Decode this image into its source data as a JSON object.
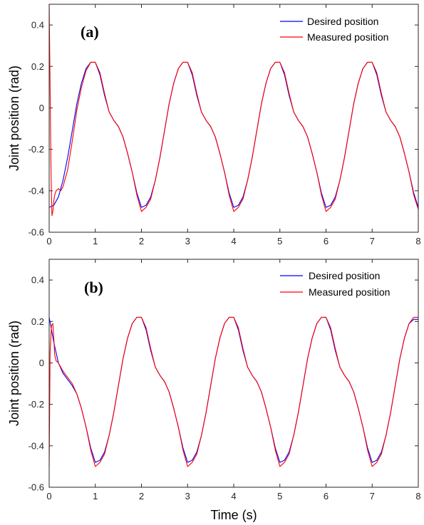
{
  "figure": {
    "xlabel": "Time (s)"
  },
  "chart_data": [
    {
      "type": "line",
      "panel_label": "(a)",
      "ylabel": "Joint position (rad)",
      "xlim": [
        0,
        8
      ],
      "ylim": [
        -0.6,
        0.5
      ],
      "x_ticks": [
        "0",
        "1",
        "2",
        "3",
        "4",
        "5",
        "6",
        "7",
        "8"
      ],
      "y_ticks": [
        "-0.6",
        "-0.4",
        "-0.2",
        "0",
        "0.2",
        "0.4"
      ],
      "legend_position": "top-right",
      "series": [
        {
          "name": "Desired position",
          "color": "#0000ff",
          "x": [
            0,
            0.1,
            0.2,
            0.3,
            0.4,
            0.5,
            0.6,
            0.7,
            0.8,
            0.9,
            1.0,
            1.1,
            1.2,
            1.3,
            1.4,
            1.5,
            1.6,
            1.7,
            1.8,
            1.9,
            2.0,
            2.1,
            2.2,
            2.3,
            2.4,
            2.5,
            2.6,
            2.7,
            2.8,
            2.9,
            3.0,
            3.1,
            3.2,
            3.3,
            3.4,
            3.5,
            3.6,
            3.7,
            3.8,
            3.9,
            4.0,
            4.1,
            4.2,
            4.3,
            4.4,
            4.5,
            4.6,
            4.7,
            4.8,
            4.9,
            5.0,
            5.1,
            5.2,
            5.3,
            5.4,
            5.5,
            5.6,
            5.7,
            5.8,
            5.9,
            6.0,
            6.1,
            6.2,
            6.3,
            6.4,
            6.5,
            6.6,
            6.7,
            6.8,
            6.9,
            7.0,
            7.1,
            7.2,
            7.3,
            7.4,
            7.5,
            7.6,
            7.7,
            7.8,
            7.9,
            8.0
          ],
          "y": [
            -0.48,
            -0.47,
            -0.43,
            -0.35,
            -0.24,
            -0.11,
            0.02,
            0.12,
            0.19,
            0.22,
            0.22,
            0.16,
            0.06,
            -0.02,
            -0.06,
            -0.09,
            -0.14,
            -0.22,
            -0.31,
            -0.41,
            -0.48,
            -0.47,
            -0.43,
            -0.35,
            -0.24,
            -0.11,
            0.02,
            0.12,
            0.19,
            0.22,
            0.22,
            0.16,
            0.06,
            -0.02,
            -0.06,
            -0.09,
            -0.14,
            -0.22,
            -0.31,
            -0.41,
            -0.48,
            -0.47,
            -0.43,
            -0.35,
            -0.24,
            -0.11,
            0.02,
            0.12,
            0.19,
            0.22,
            0.22,
            0.16,
            0.06,
            -0.02,
            -0.06,
            -0.09,
            -0.14,
            -0.22,
            -0.31,
            -0.41,
            -0.48,
            -0.47,
            -0.43,
            -0.35,
            -0.24,
            -0.11,
            0.02,
            0.12,
            0.19,
            0.22,
            0.22,
            0.16,
            0.06,
            -0.02,
            -0.06,
            -0.09,
            -0.14,
            -0.22,
            -0.31,
            -0.41,
            -0.48
          ]
        },
        {
          "name": "Measured position",
          "color": "#ff0000",
          "x": [
            0,
            0.02,
            0.04,
            0.06,
            0.08,
            0.1,
            0.12,
            0.15,
            0.2,
            0.25,
            0.3,
            0.4,
            0.5,
            0.6,
            0.7,
            0.8,
            0.9,
            1.0,
            1.1,
            1.2,
            1.3,
            1.4,
            1.5,
            1.6,
            1.7,
            1.8,
            1.9,
            2.0,
            2.1,
            2.2,
            2.3,
            2.4,
            2.5,
            2.6,
            2.7,
            2.8,
            2.9,
            3.0,
            3.1,
            3.2,
            3.3,
            3.4,
            3.5,
            3.6,
            3.7,
            3.8,
            3.9,
            4.0,
            4.1,
            4.2,
            4.3,
            4.4,
            4.5,
            4.6,
            4.7,
            4.8,
            4.9,
            5.0,
            5.1,
            5.2,
            5.3,
            5.4,
            5.5,
            5.6,
            5.7,
            5.8,
            5.9,
            6.0,
            6.1,
            6.2,
            6.3,
            6.4,
            6.5,
            6.6,
            6.7,
            6.8,
            6.9,
            7.0,
            7.1,
            7.2,
            7.3,
            7.4,
            7.5,
            7.6,
            7.7,
            7.8,
            7.9,
            8.0
          ],
          "y": [
            0.5,
            0.1,
            -0.3,
            -0.52,
            -0.5,
            -0.45,
            -0.42,
            -0.4,
            -0.39,
            -0.4,
            -0.38,
            -0.3,
            -0.16,
            -0.01,
            0.1,
            0.18,
            0.22,
            0.22,
            0.17,
            0.07,
            -0.02,
            -0.06,
            -0.09,
            -0.14,
            -0.22,
            -0.31,
            -0.42,
            -0.5,
            -0.48,
            -0.44,
            -0.35,
            -0.24,
            -0.11,
            0.02,
            0.12,
            0.19,
            0.22,
            0.22,
            0.17,
            0.07,
            -0.02,
            -0.06,
            -0.09,
            -0.14,
            -0.22,
            -0.31,
            -0.42,
            -0.5,
            -0.48,
            -0.44,
            -0.35,
            -0.24,
            -0.11,
            0.02,
            0.12,
            0.19,
            0.22,
            0.22,
            0.17,
            0.07,
            -0.02,
            -0.06,
            -0.09,
            -0.14,
            -0.22,
            -0.31,
            -0.42,
            -0.5,
            -0.48,
            -0.44,
            -0.35,
            -0.24,
            -0.11,
            0.02,
            0.12,
            0.19,
            0.22,
            0.22,
            0.17,
            0.07,
            -0.02,
            -0.06,
            -0.09,
            -0.14,
            -0.22,
            -0.31,
            -0.42,
            -0.49
          ]
        }
      ]
    },
    {
      "type": "line",
      "panel_label": "(b)",
      "ylabel": "Joint position (rad)",
      "xlim": [
        0,
        8
      ],
      "ylim": [
        -0.6,
        0.5
      ],
      "x_ticks": [
        "0",
        "1",
        "2",
        "3",
        "4",
        "5",
        "6",
        "7",
        "8"
      ],
      "y_ticks": [
        "-0.6",
        "-0.4",
        "-0.2",
        "0",
        "0.2",
        "0.4"
      ],
      "legend_position": "top-right",
      "series": [
        {
          "name": "Desired position",
          "color": "#0000ff",
          "x": [
            0,
            0.1,
            0.2,
            0.3,
            0.4,
            0.5,
            0.6,
            0.7,
            0.8,
            0.9,
            1.0,
            1.1,
            1.2,
            1.3,
            1.4,
            1.5,
            1.6,
            1.7,
            1.8,
            1.9,
            2.0,
            2.1,
            2.2,
            2.3,
            2.4,
            2.5,
            2.6,
            2.7,
            2.8,
            2.9,
            3.0,
            3.1,
            3.2,
            3.3,
            3.4,
            3.5,
            3.6,
            3.7,
            3.8,
            3.9,
            4.0,
            4.1,
            4.2,
            4.3,
            4.4,
            4.5,
            4.6,
            4.7,
            4.8,
            4.9,
            5.0,
            5.1,
            5.2,
            5.3,
            5.4,
            5.5,
            5.6,
            5.7,
            5.8,
            5.9,
            6.0,
            6.1,
            6.2,
            6.3,
            6.4,
            6.5,
            6.6,
            6.7,
            6.8,
            6.9,
            7.0,
            7.1,
            7.2,
            7.3,
            7.4,
            7.5,
            7.6,
            7.7,
            7.8,
            7.9,
            8.0
          ],
          "y": [
            0.22,
            0.1,
            0.0,
            -0.05,
            -0.08,
            -0.11,
            -0.15,
            -0.22,
            -0.31,
            -0.41,
            -0.48,
            -0.47,
            -0.43,
            -0.35,
            -0.24,
            -0.11,
            0.02,
            0.12,
            0.19,
            0.22,
            0.22,
            0.16,
            0.06,
            -0.02,
            -0.06,
            -0.09,
            -0.14,
            -0.22,
            -0.31,
            -0.41,
            -0.48,
            -0.47,
            -0.43,
            -0.35,
            -0.24,
            -0.11,
            0.02,
            0.12,
            0.19,
            0.22,
            0.22,
            0.16,
            0.06,
            -0.02,
            -0.06,
            -0.09,
            -0.14,
            -0.22,
            -0.31,
            -0.41,
            -0.48,
            -0.47,
            -0.43,
            -0.35,
            -0.24,
            -0.11,
            0.02,
            0.12,
            0.19,
            0.22,
            0.22,
            0.16,
            0.06,
            -0.02,
            -0.06,
            -0.09,
            -0.14,
            -0.22,
            -0.31,
            -0.41,
            -0.48,
            -0.47,
            -0.43,
            -0.35,
            -0.24,
            -0.11,
            0.02,
            0.12,
            0.19,
            0.21,
            0.21
          ]
        },
        {
          "name": "Measured position",
          "color": "#ff0000",
          "x": [
            0,
            0.02,
            0.05,
            0.08,
            0.1,
            0.12,
            0.15,
            0.2,
            0.25,
            0.3,
            0.4,
            0.5,
            0.6,
            0.7,
            0.8,
            0.9,
            1.0,
            1.1,
            1.2,
            1.3,
            1.4,
            1.5,
            1.6,
            1.7,
            1.8,
            1.9,
            2.0,
            2.1,
            2.2,
            2.3,
            2.4,
            2.5,
            2.6,
            2.7,
            2.8,
            2.9,
            3.0,
            3.1,
            3.2,
            3.3,
            3.4,
            3.5,
            3.6,
            3.7,
            3.8,
            3.9,
            4.0,
            4.1,
            4.2,
            4.3,
            4.4,
            4.5,
            4.6,
            4.7,
            4.8,
            4.9,
            5.0,
            5.1,
            5.2,
            5.3,
            5.4,
            5.5,
            5.6,
            5.7,
            5.8,
            5.9,
            6.0,
            6.1,
            6.2,
            6.3,
            6.4,
            6.5,
            6.6,
            6.7,
            6.8,
            6.9,
            7.0,
            7.1,
            7.2,
            7.3,
            7.4,
            7.5,
            7.6,
            7.7,
            7.8,
            7.9,
            8.0
          ],
          "y": [
            -0.5,
            0.05,
            0.18,
            0.19,
            0.12,
            0.04,
            0.01,
            0.0,
            -0.02,
            -0.04,
            -0.07,
            -0.1,
            -0.15,
            -0.22,
            -0.31,
            -0.42,
            -0.5,
            -0.48,
            -0.44,
            -0.35,
            -0.24,
            -0.11,
            0.02,
            0.12,
            0.19,
            0.22,
            0.22,
            0.17,
            0.07,
            -0.02,
            -0.06,
            -0.09,
            -0.14,
            -0.22,
            -0.31,
            -0.42,
            -0.5,
            -0.48,
            -0.44,
            -0.35,
            -0.24,
            -0.11,
            0.02,
            0.12,
            0.19,
            0.22,
            0.22,
            0.17,
            0.07,
            -0.02,
            -0.06,
            -0.09,
            -0.14,
            -0.22,
            -0.31,
            -0.42,
            -0.5,
            -0.48,
            -0.44,
            -0.35,
            -0.24,
            -0.11,
            0.02,
            0.12,
            0.19,
            0.22,
            0.22,
            0.17,
            0.07,
            -0.02,
            -0.06,
            -0.09,
            -0.14,
            -0.22,
            -0.31,
            -0.42,
            -0.5,
            -0.48,
            -0.44,
            -0.35,
            -0.24,
            -0.11,
            0.02,
            0.12,
            0.19,
            0.22,
            0.22
          ]
        }
      ]
    }
  ]
}
